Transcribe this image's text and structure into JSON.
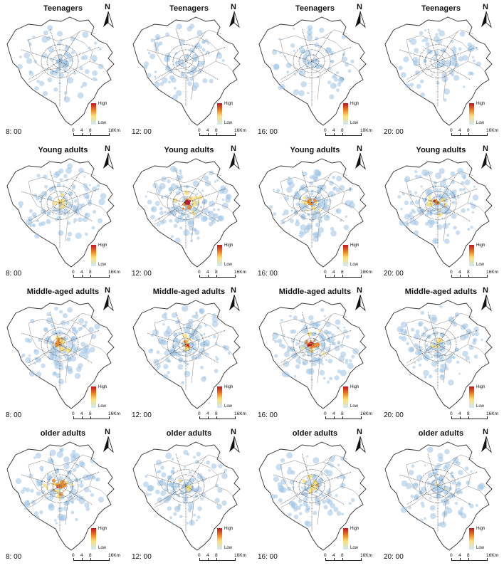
{
  "legend": {
    "high": "High",
    "low": "Low",
    "colors": [
      "#c1121f",
      "#f08a24",
      "#fbe07a",
      "#cfe8f5"
    ]
  },
  "north_label": "N",
  "scale": {
    "ticks": [
      "0",
      "4",
      "8"
    ],
    "end_labels": [
      "18Km",
      "16Km"
    ]
  },
  "rows": [
    {
      "group": "Teenagers",
      "panels": [
        {
          "title": "Teenagers",
          "time": "8: 00",
          "scale_end": "18Km",
          "intensity": 0.15
        },
        {
          "title": "Teenagers",
          "time": "12: 00",
          "scale_end": "16Km",
          "intensity": 0.05
        },
        {
          "title": "Teenagers",
          "time": "16: 00",
          "scale_end": "18Km",
          "intensity": 0.05
        },
        {
          "title": "Teenagers",
          "time": "20: 00",
          "scale_end": "16Km",
          "intensity": 0.05
        }
      ]
    },
    {
      "group": "Young adults",
      "panels": [
        {
          "title": "Young adults",
          "time": "8: 00",
          "scale_end": "16Km",
          "intensity": 0.45
        },
        {
          "title": "Young adults",
          "time": "12: 00",
          "scale_end": "16Km",
          "intensity": 0.8
        },
        {
          "title": "Young adults",
          "time": "16: 00",
          "scale_end": "18Km",
          "intensity": 0.6
        },
        {
          "title": "Young adults",
          "time": "20: 00",
          "scale_end": "16Km",
          "intensity": 0.7
        }
      ]
    },
    {
      "group": "Middle-aged adults",
      "panels": [
        {
          "title": "Middle-aged adults",
          "time": "8: 00",
          "scale_end": "16Km",
          "intensity": 0.55
        },
        {
          "title": "Middle-aged adults",
          "time": "12: 00",
          "scale_end": "16Km",
          "intensity": 0.65
        },
        {
          "title": "Middle-aged adults",
          "time": "16: 00",
          "scale_end": "16Km",
          "intensity": 0.75
        },
        {
          "title": "Middle-aged adults",
          "time": "20: 00",
          "scale_end": "16Km",
          "intensity": 0.45
        }
      ]
    },
    {
      "group": "older adults",
      "panels": [
        {
          "title": "older adults",
          "time": "8: 00",
          "scale_end": "16Km",
          "intensity": 0.7
        },
        {
          "title": "older adults",
          "time": "12: 00",
          "scale_end": "16Km",
          "intensity": 0.35
        },
        {
          "title": "older adults",
          "time": "16: 00",
          "scale_end": "16Km",
          "intensity": 0.5
        },
        {
          "title": "older adults",
          "time": "20: 00",
          "scale_end": "16Km",
          "intensity": 0.3
        }
      ]
    }
  ]
}
